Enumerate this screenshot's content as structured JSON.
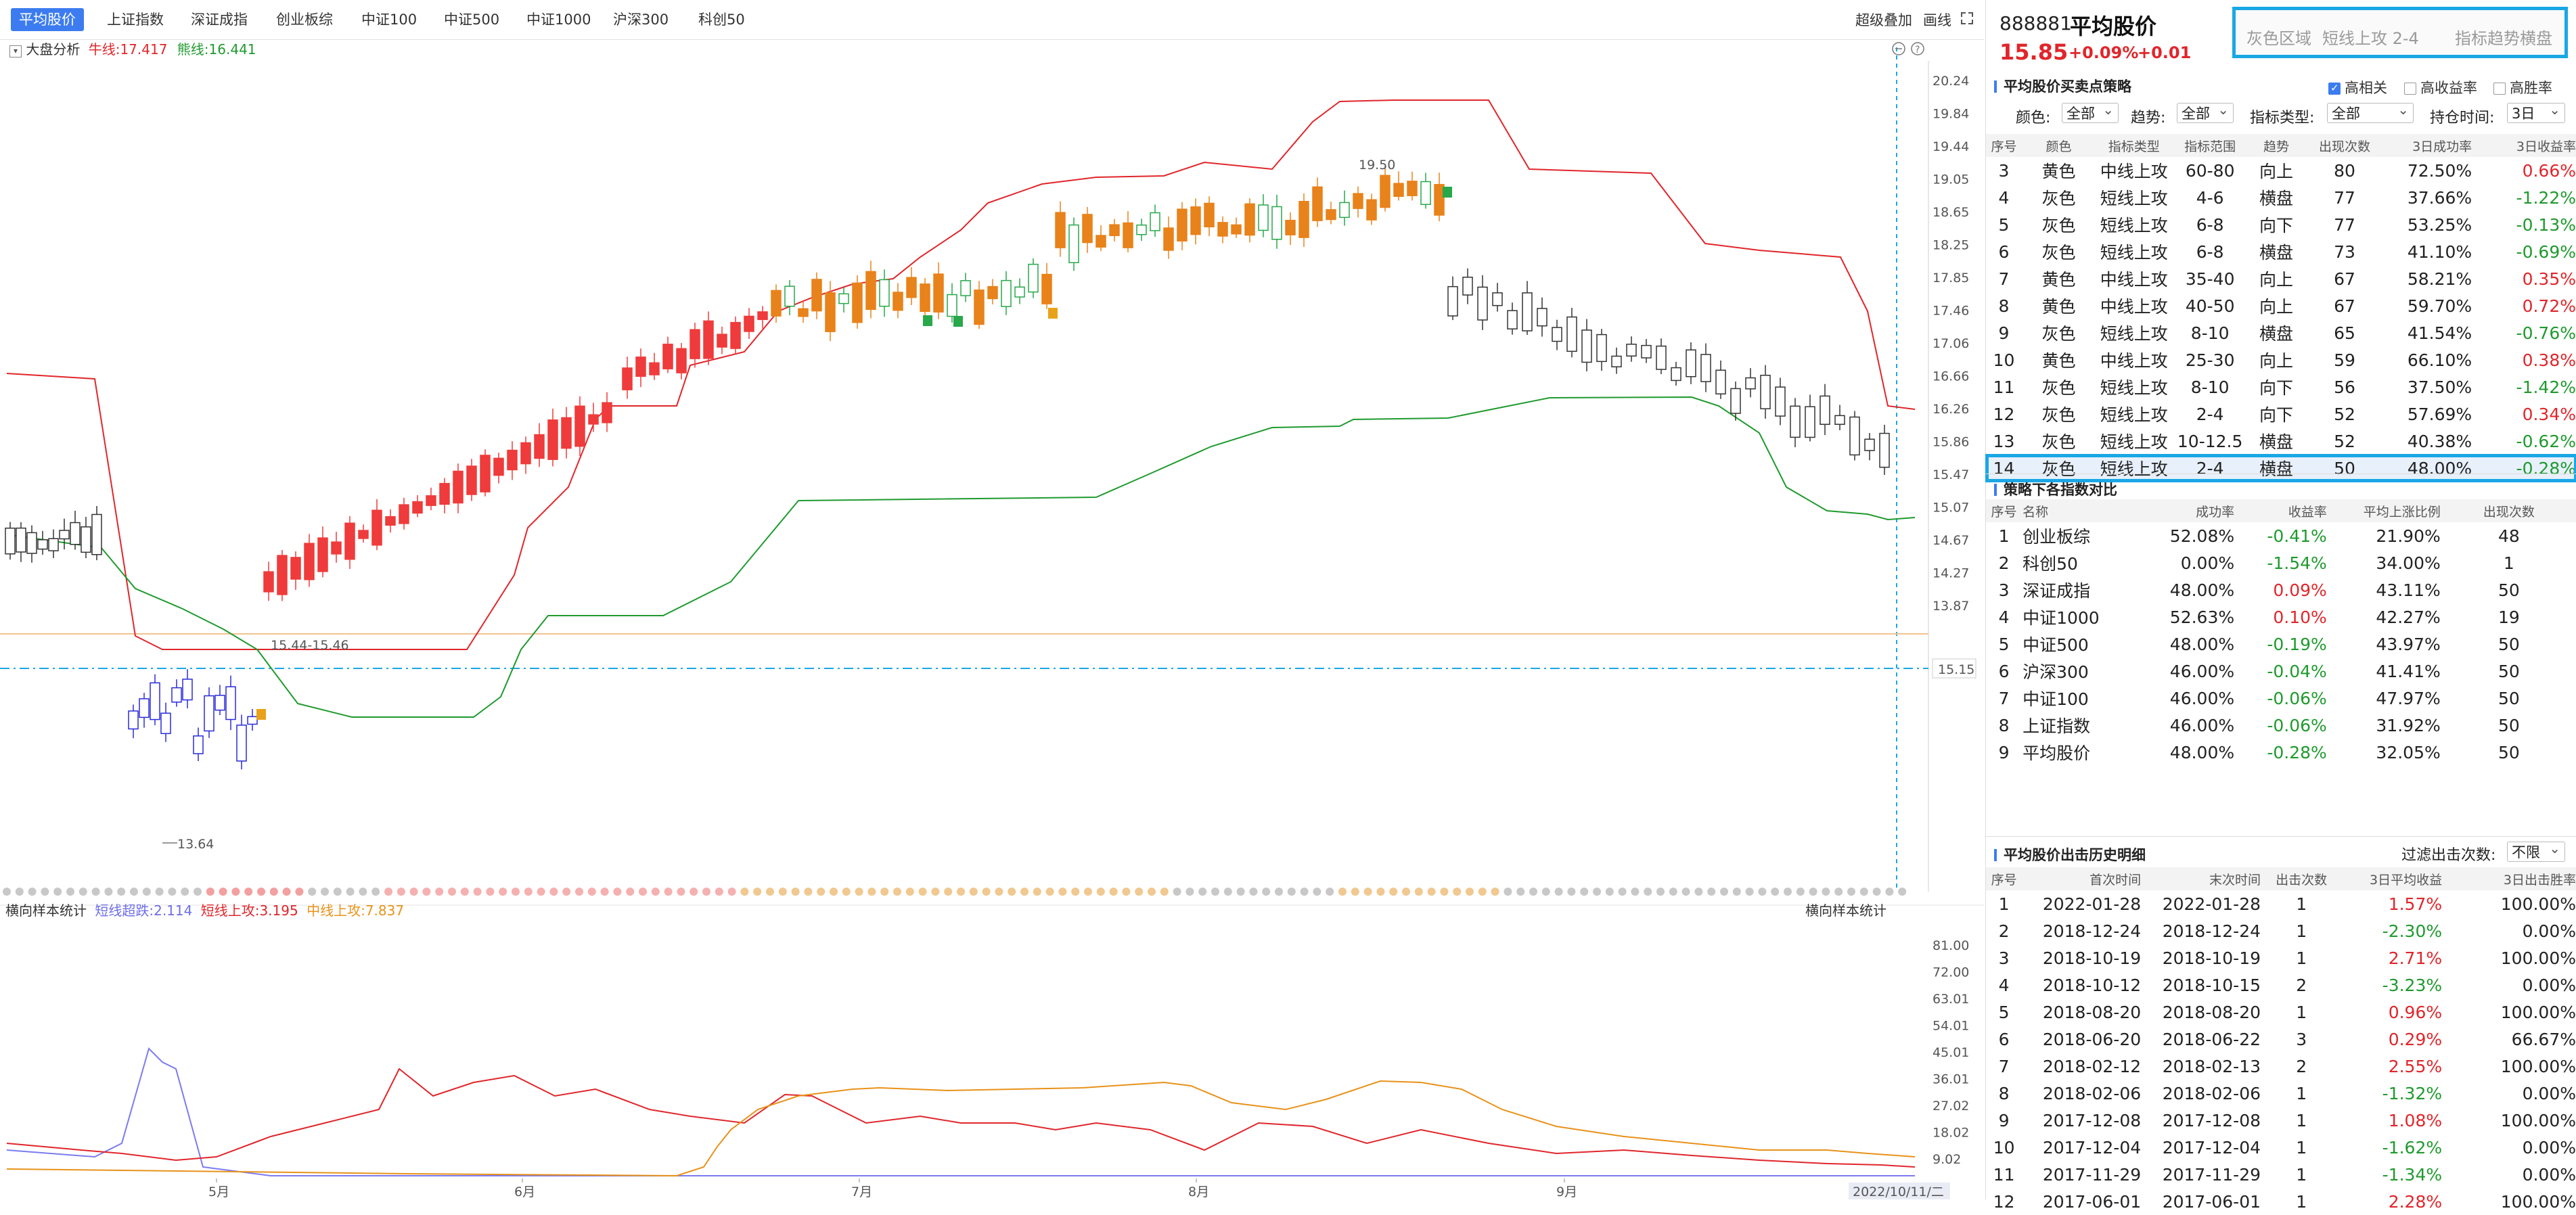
{
  "tabs": [
    {
      "label": "平均股价",
      "active": true
    },
    {
      "label": "上证指数"
    },
    {
      "label": "深证成指"
    },
    {
      "label": "创业板综"
    },
    {
      "label": "中证100"
    },
    {
      "label": "中证500"
    },
    {
      "label": "中证1000"
    },
    {
      "label": "沪深300"
    },
    {
      "label": "科创50"
    }
  ],
  "toolbar": {
    "overlay_label": "超级叠加",
    "draw_label": "画线"
  },
  "chart": {
    "legend": {
      "title": "大盘分析",
      "niu": "牛线:17.417",
      "xiong": "熊线:16.441"
    },
    "y_ticks": [
      "20.24",
      "19.84",
      "19.44",
      "19.05",
      "18.65",
      "18.25",
      "17.85",
      "17.46",
      "17.06",
      "16.66",
      "16.26",
      "15.86",
      "15.47",
      "15.07",
      "14.67",
      "14.27",
      "13.87"
    ],
    "current_price_tag": "15.15",
    "annotations": {
      "high": "19.50",
      "low": "13.64",
      "range": "15.44-15.46"
    },
    "x_ticks": [
      "5月",
      "6月",
      "7月",
      "8月",
      "9月"
    ],
    "date_tag": "2022/10/11/二"
  },
  "sub_chart": {
    "title": "横向样本统计",
    "legend_a": "短线超跌:2.114",
    "legend_b": "短线上攻:3.195",
    "legend_c": "中线上攻:7.837",
    "right_title": "横向样本统计",
    "y_ticks": [
      "81.00",
      "72.00",
      "63.01",
      "54.01",
      "45.01",
      "36.01",
      "27.02",
      "18.02",
      "9.02"
    ]
  },
  "colors": {
    "accent": "#3c7cf0",
    "up": "#e0262b",
    "down": "#1f9a2e",
    "highlight": "#1aa7e6",
    "orange": "#e8821a"
  },
  "right_panel": {
    "code": "888881",
    "name": "平均股价",
    "price": "15.85",
    "change_pct": "+0.09%",
    "change_abs": "+0.01",
    "search": {
      "area": "灰色区域",
      "strategy": "短线上攻  2-4",
      "trend": "指标趋势横盘"
    },
    "strategy_title": "平均股价买卖点策略",
    "checks": [
      {
        "label": "高相关",
        "on": true
      },
      {
        "label": "高收益率",
        "on": false
      },
      {
        "label": "高胜率",
        "on": false
      }
    ],
    "filters": {
      "color_label": "颜色:",
      "color_value": "全部",
      "trend_label": "趋势:",
      "trend_value": "全部",
      "type_label": "指标类型:",
      "type_value": "全部",
      "hold_label": "持仓时间:",
      "hold_value": "3日"
    },
    "strategy_headers": [
      "序号",
      "颜色",
      "指标类型",
      "指标范围",
      "趋势",
      "出现次数",
      "3日成功率",
      "3日收益率"
    ],
    "strategy_rows": [
      [
        "3",
        "黄色",
        "中线上攻",
        "60-80",
        "向上",
        "80",
        "72.50%",
        "0.66%"
      ],
      [
        "4",
        "灰色",
        "短线上攻",
        "4-6",
        "横盘",
        "77",
        "37.66%",
        "-1.22%"
      ],
      [
        "5",
        "灰色",
        "短线上攻",
        "6-8",
        "向下",
        "77",
        "53.25%",
        "-0.13%"
      ],
      [
        "6",
        "灰色",
        "短线上攻",
        "6-8",
        "横盘",
        "73",
        "41.10%",
        "-0.69%"
      ],
      [
        "7",
        "黄色",
        "中线上攻",
        "35-40",
        "向上",
        "67",
        "58.21%",
        "0.35%"
      ],
      [
        "8",
        "黄色",
        "中线上攻",
        "40-50",
        "向上",
        "67",
        "59.70%",
        "0.72%"
      ],
      [
        "9",
        "灰色",
        "短线上攻",
        "8-10",
        "横盘",
        "65",
        "41.54%",
        "-0.76%"
      ],
      [
        "10",
        "黄色",
        "中线上攻",
        "25-30",
        "向上",
        "59",
        "66.10%",
        "0.38%"
      ],
      [
        "11",
        "灰色",
        "短线上攻",
        "8-10",
        "向下",
        "56",
        "37.50%",
        "-1.42%"
      ],
      [
        "12",
        "灰色",
        "短线上攻",
        "2-4",
        "向下",
        "52",
        "57.69%",
        "0.34%"
      ],
      [
        "13",
        "灰色",
        "短线上攻",
        "10-12.5",
        "横盘",
        "52",
        "40.38%",
        "-0.62%"
      ],
      [
        "14",
        "灰色",
        "短线上攻",
        "2-4",
        "横盘",
        "50",
        "48.00%",
        "-0.28%"
      ]
    ],
    "compare_title": "策略下各指数对比",
    "compare_headers": [
      "序号",
      "名称",
      "成功率",
      "收益率",
      "平均上涨比例",
      "出现次数"
    ],
    "compare_rows": [
      [
        "1",
        "创业板综",
        "52.08%",
        "-0.41%",
        "21.90%",
        "48"
      ],
      [
        "2",
        "科创50",
        "0.00%",
        "-1.54%",
        "34.00%",
        "1"
      ],
      [
        "3",
        "深证成指",
        "48.00%",
        "0.09%",
        "43.11%",
        "50"
      ],
      [
        "4",
        "中证1000",
        "52.63%",
        "0.10%",
        "42.27%",
        "19"
      ],
      [
        "5",
        "中证500",
        "48.00%",
        "-0.19%",
        "43.97%",
        "50"
      ],
      [
        "6",
        "沪深300",
        "46.00%",
        "-0.04%",
        "41.41%",
        "50"
      ],
      [
        "7",
        "中证100",
        "46.00%",
        "-0.06%",
        "47.97%",
        "50"
      ],
      [
        "8",
        "上证指数",
        "46.00%",
        "-0.06%",
        "31.92%",
        "50"
      ],
      [
        "9",
        "平均股价",
        "48.00%",
        "-0.28%",
        "32.05%",
        "50"
      ]
    ],
    "history_title": "平均股价出击历史明细",
    "history_filter_label": "过滤出击次数:",
    "history_filter_value": "不限",
    "history_headers": [
      "序号",
      "首次时间",
      "末次时间",
      "出击次数",
      "3日平均收益",
      "3日出击胜率"
    ],
    "history_rows": [
      [
        "1",
        "2022-01-28",
        "2022-01-28",
        "1",
        "1.57%",
        "100.00%"
      ],
      [
        "2",
        "2018-12-24",
        "2018-12-24",
        "1",
        "-2.30%",
        "0.00%"
      ],
      [
        "3",
        "2018-10-19",
        "2018-10-19",
        "1",
        "2.71%",
        "100.00%"
      ],
      [
        "4",
        "2018-10-12",
        "2018-10-15",
        "2",
        "-3.23%",
        "0.00%"
      ],
      [
        "5",
        "2018-08-20",
        "2018-08-20",
        "1",
        "0.96%",
        "100.00%"
      ],
      [
        "6",
        "2018-06-20",
        "2018-06-22",
        "3",
        "0.29%",
        "66.67%"
      ],
      [
        "7",
        "2018-02-12",
        "2018-02-13",
        "2",
        "2.55%",
        "100.00%"
      ],
      [
        "8",
        "2018-02-06",
        "2018-02-06",
        "1",
        "-1.32%",
        "0.00%"
      ],
      [
        "9",
        "2017-12-08",
        "2017-12-08",
        "1",
        "1.08%",
        "100.00%"
      ],
      [
        "10",
        "2017-12-04",
        "2017-12-04",
        "1",
        "-1.62%",
        "0.00%"
      ],
      [
        "11",
        "2017-11-29",
        "2017-11-29",
        "1",
        "-1.34%",
        "0.00%"
      ],
      [
        "12",
        "2017-06-01",
        "2017-06-01",
        "1",
        "2.28%",
        "100.00%"
      ]
    ]
  }
}
